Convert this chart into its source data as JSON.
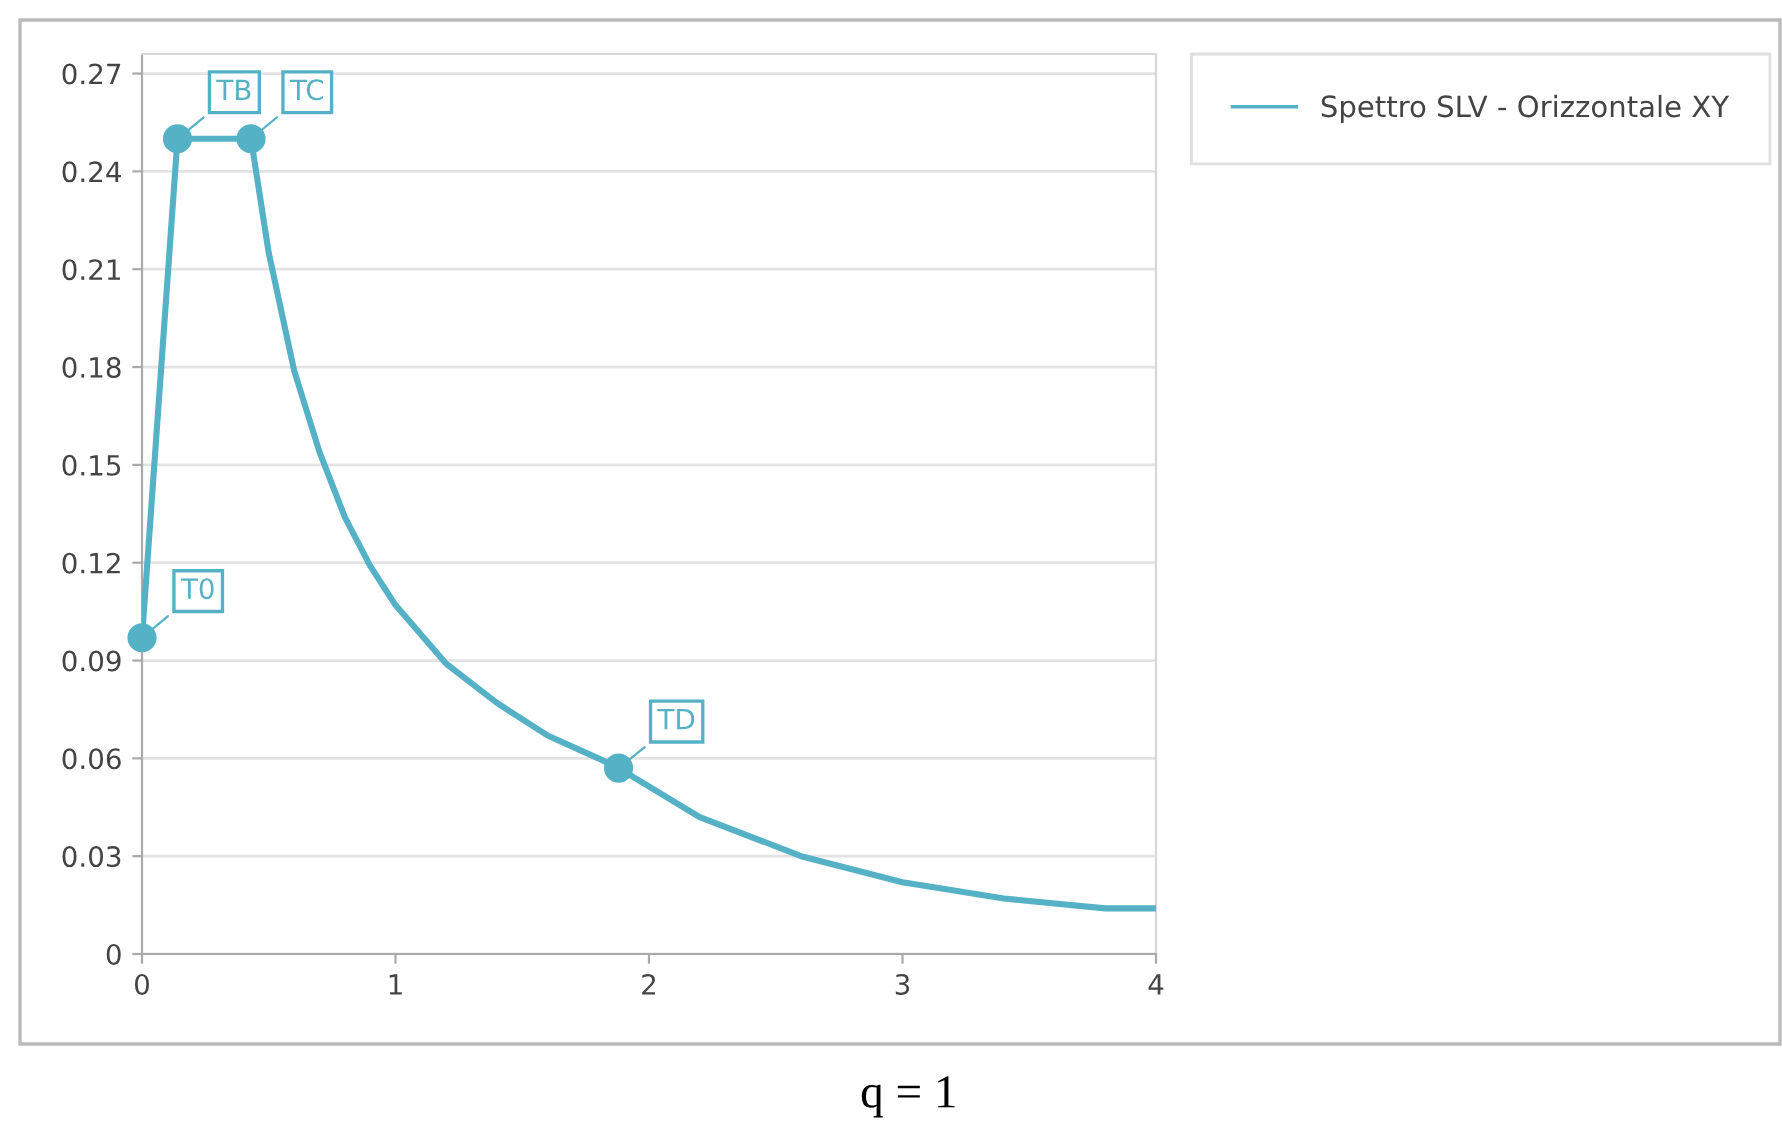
{
  "chart_data": {
    "type": "line",
    "xlim": [
      0,
      4
    ],
    "ylim": [
      0,
      0.276
    ],
    "xticks": [
      0,
      1,
      2,
      3,
      4
    ],
    "yticks": [
      0,
      0.03,
      0.06,
      0.09,
      0.12,
      0.15,
      0.18,
      0.21,
      0.24,
      0.27
    ],
    "grid": "y",
    "legend": "right",
    "line_style": "solid",
    "series": [
      {
        "name": "Spettro SLV - Orizzontale XY",
        "color": "#55b2c6",
        "marker": "none",
        "x": [
          0,
          0.14,
          0.43,
          0.5,
          0.6,
          0.7,
          0.8,
          0.9,
          1.0,
          1.2,
          1.4,
          1.6,
          1.8,
          1.88,
          2.2,
          2.6,
          3.0,
          3.4,
          3.8,
          4.0
        ],
        "values": [
          0.097,
          0.25,
          0.25,
          0.215,
          0.179,
          0.154,
          0.134,
          0.119,
          0.107,
          0.089,
          0.077,
          0.067,
          0.06,
          0.057,
          0.042,
          0.03,
          0.022,
          0.017,
          0.014,
          0.014
        ]
      },
      {
        "type": "scatter",
        "color": "#55b2c6",
        "marker": "circle",
        "x": [
          0,
          0.14,
          0.43,
          1.88
        ],
        "values": [
          0.097,
          0.25,
          0.25,
          0.057
        ]
      }
    ],
    "annotations": [
      {
        "text": "T0",
        "x": 0,
        "y": 0.097
      },
      {
        "text": "TB",
        "x": 0.14,
        "y": 0.25
      },
      {
        "text": "TC",
        "x": 0.43,
        "y": 0.25
      },
      {
        "text": "TD",
        "x": 1.88,
        "y": 0.057
      },
      "q = 1"
    ]
  }
}
